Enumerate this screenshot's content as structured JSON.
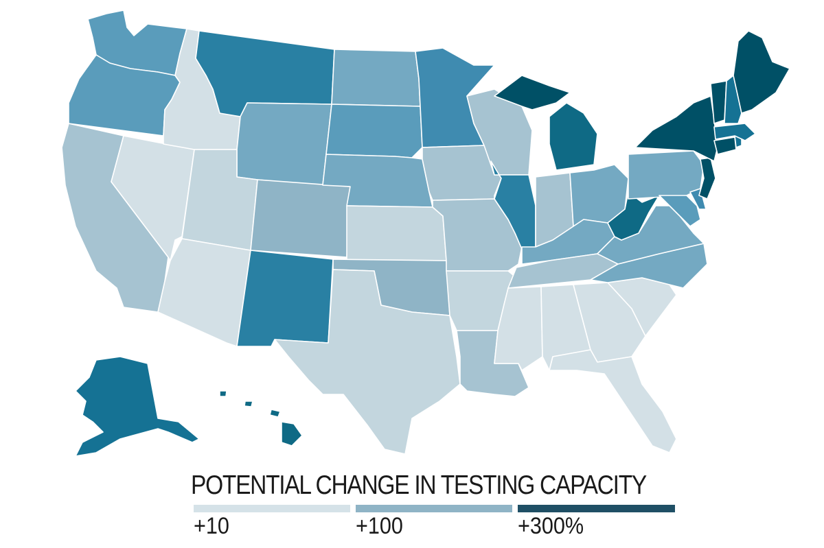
{
  "legend": {
    "title": "POTENTIAL CHANGE IN TESTING CAPACITY",
    "bins": [
      {
        "label": "+10",
        "color": "#d5e2e8"
      },
      {
        "label": "+100",
        "color": "#8fb4c6"
      },
      {
        "label": "+300%",
        "color": "#1f4f65"
      }
    ]
  },
  "colors": {
    "c1": "#d3e0e6",
    "c2": "#c3d6de",
    "c3": "#a6c3d1",
    "c4": "#8fb4c6",
    "c5": "#74a9c2",
    "c6": "#5a9cbb",
    "c7": "#3f8bb0",
    "c8": "#2980a3",
    "c9": "#157294",
    "c10": "#0f6a85",
    "c11": "#005066"
  }
}
